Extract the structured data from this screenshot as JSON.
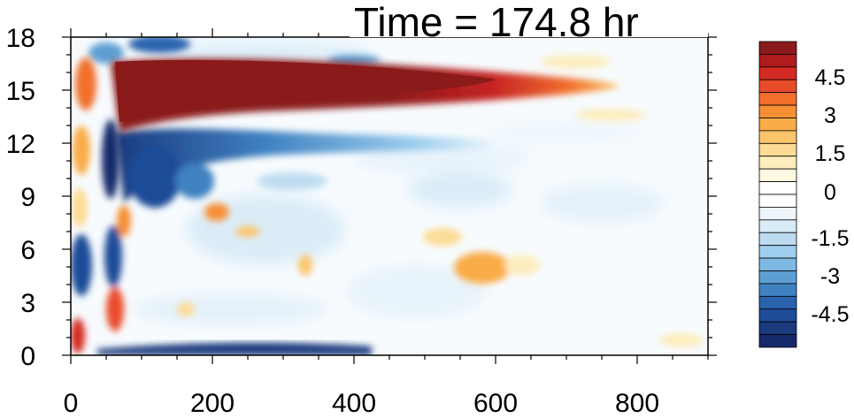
{
  "chart_data": {
    "type": "heatmap",
    "title": "Time = 174.8 hr",
    "xlabel": "",
    "ylabel": "",
    "xlim": [
      0,
      900
    ],
    "ylim": [
      0,
      18
    ],
    "x_ticks": [
      "0",
      "200",
      "400",
      "600",
      "800"
    ],
    "y_ticks": [
      "0",
      "3",
      "6",
      "9",
      "12",
      "15",
      "18"
    ],
    "colorbar": {
      "range": [
        -6,
        6
      ],
      "step": 0.5,
      "labels": [
        "4.5",
        "3",
        "1.5",
        "0",
        "-1.5",
        "-3",
        "-4.5"
      ],
      "colors": [
        "#8b1a1a",
        "#b01c1e",
        "#d42a24",
        "#e94c2a",
        "#f26f2c",
        "#f68f34",
        "#f9ac47",
        "#fbc66a",
        "#fcdc94",
        "#fdedbd",
        "#fff8e1",
        "#ffffff",
        "#ffffff",
        "#eef6fc",
        "#d8ebf7",
        "#bddcf0",
        "#9ecfee",
        "#7eb9e3",
        "#5d9fd3",
        "#3f82c2",
        "#2a63ad",
        "#1f4c98",
        "#1a3a7e",
        "#16296a"
      ]
    },
    "features": [
      {
        "name": "upper jet core",
        "x": [
          60,
          700
        ],
        "y": [
          12.5,
          17
        ],
        "value": 6
      },
      {
        "name": "negative band below jet",
        "x": [
          60,
          560
        ],
        "y": [
          10.5,
          13
        ],
        "value": -3.5
      },
      {
        "name": "surface negative layer",
        "x": [
          60,
          420
        ],
        "y": [
          0.3,
          1.2
        ],
        "value": -4.5
      },
      {
        "name": "left boundary oscillation",
        "x": [
          0,
          60
        ],
        "y": [
          0,
          18
        ],
        "value": 3
      },
      {
        "name": "positive patch",
        "x": [
          520,
          620
        ],
        "y": [
          4,
          5.5
        ],
        "value": 1.5
      }
    ]
  }
}
